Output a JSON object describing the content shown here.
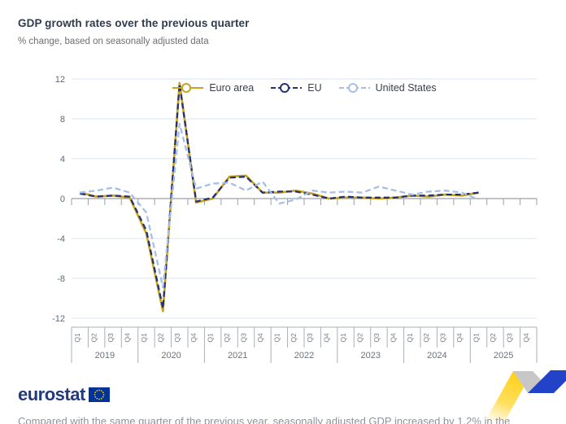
{
  "header": {
    "title": "GDP growth rates over the previous quarter",
    "subtitle": "% change, based on seasonally adjusted data"
  },
  "chart_data": {
    "type": "line",
    "title": "GDP growth rates over the previous quarter",
    "ylabel": "% change",
    "ylim": [
      -12,
      12
    ],
    "yticks": [
      -12,
      -8,
      -4,
      0,
      4,
      8,
      12
    ],
    "grid": "horizontal",
    "legend_position": "top-center",
    "years": [
      "2019",
      "2020",
      "2021",
      "2022",
      "2023",
      "2024",
      "2025"
    ],
    "quarters_per_year": [
      "Q1",
      "Q2",
      "Q3",
      "Q4"
    ],
    "series": [
      {
        "name": "Euro area",
        "color": "#C9A21E",
        "dash": "solid",
        "values": [
          0.6,
          0.2,
          0.3,
          0.1,
          -3.5,
          -11.3,
          11.6,
          -0.4,
          0.0,
          2.2,
          2.3,
          0.6,
          0.6,
          0.8,
          0.5,
          0.0,
          0.1,
          0.1,
          0.0,
          0.1,
          0.3,
          0.2,
          0.4,
          0.3,
          0.6
        ]
      },
      {
        "name": "EU",
        "color": "#243272",
        "dash": "dashed",
        "values": [
          0.5,
          0.2,
          0.3,
          0.2,
          -3.2,
          -11.0,
          11.5,
          -0.3,
          0.1,
          2.1,
          2.2,
          0.6,
          0.7,
          0.7,
          0.4,
          0.0,
          0.2,
          0.1,
          0.1,
          0.1,
          0.3,
          0.3,
          0.4,
          0.4,
          0.6
        ]
      },
      {
        "name": "United States",
        "color": "#A5BFE9",
        "dash": "dashed",
        "values": [
          0.6,
          0.8,
          1.1,
          0.6,
          -1.4,
          -8.9,
          7.5,
          1.0,
          1.5,
          1.6,
          0.8,
          1.7,
          -0.5,
          -0.1,
          0.8,
          0.6,
          0.7,
          0.6,
          1.2,
          0.8,
          0.4,
          0.7,
          0.8,
          0.6,
          -0.1
        ]
      }
    ]
  },
  "styles": {
    "grid_color": "#dbe4f0",
    "zero_line_color": "#9aa0a6",
    "axis_line_color": "#aab0b6",
    "tick_label_color": "#5e6873",
    "quarter_label_color": "#737d88",
    "year_label_color": "#6a737d"
  },
  "footer": {
    "logo_text": "eurostat",
    "flag_icon": "eu-flag",
    "note_partial": "Compared with the same quarter of the previous year, seasonally adjusted GDP increased by 1.2% in the"
  },
  "decoration": {
    "ribbon_colors": [
      "#FFD21E",
      "#C7C7C7",
      "#2243C8"
    ]
  }
}
